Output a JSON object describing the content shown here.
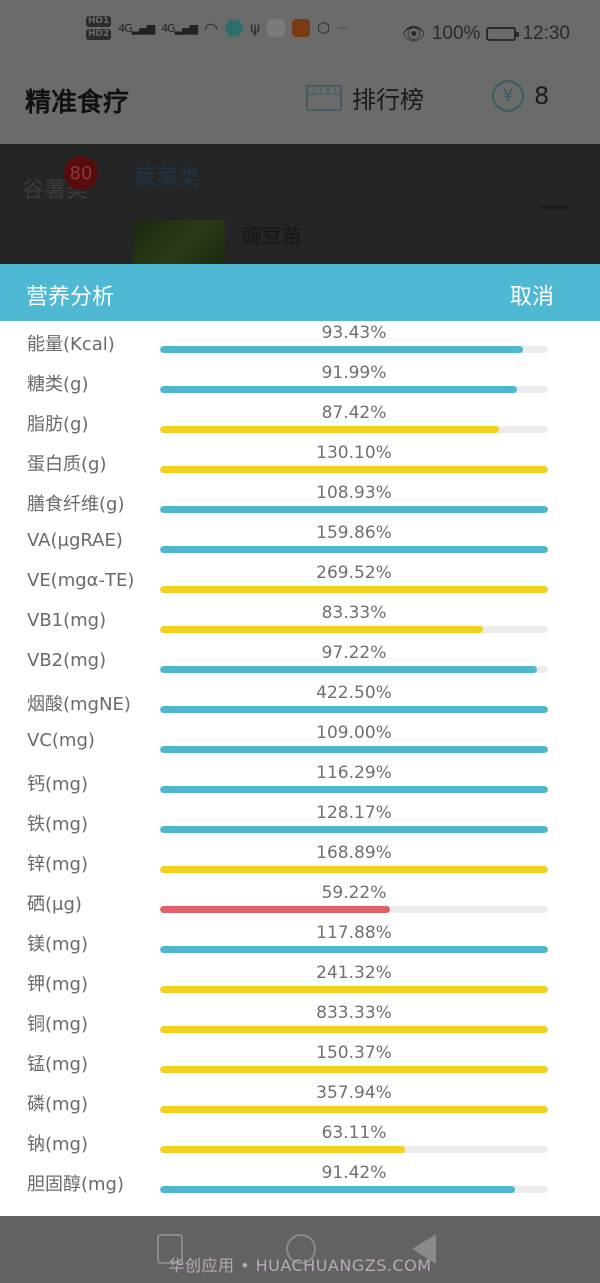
{
  "status_bar": {
    "hd1": "HD1",
    "hd2": "HD2",
    "signal1": "4G",
    "signal2": "4G",
    "overflow": "···",
    "eye_icon": "eye-comfort-icon",
    "battery_pct": "100%",
    "time": "12:30"
  },
  "app_bar": {
    "title": "精准食疗",
    "ranking_label": "排行榜",
    "coin_symbol": "¥",
    "coin_count": "8"
  },
  "background": {
    "left_category": "谷薯类",
    "badge_count": "80",
    "right_category": "蔬菜类",
    "food_name": "豌豆苗"
  },
  "modal": {
    "title": "营养分析",
    "cancel_label": "取消",
    "colors": {
      "ok": "#4fb6cc",
      "over": "#f2d21e",
      "low": "#e0606a",
      "track": "#ececec",
      "header": "#4fb8d3"
    },
    "rows": [
      {
        "label": "能量(Kcal)",
        "percent": "93.43%",
        "fill": 93.43,
        "color": "#4fb6cc"
      },
      {
        "label": "糖类(g)",
        "percent": "91.99%",
        "fill": 91.99,
        "color": "#4fb6cc"
      },
      {
        "label": "脂肪(g)",
        "percent": "87.42%",
        "fill": 87.42,
        "color": "#f2d21e"
      },
      {
        "label": "蛋白质(g)",
        "percent": "130.10%",
        "fill": 100,
        "color": "#f2d21e"
      },
      {
        "label": "膳食纤维(g)",
        "percent": "108.93%",
        "fill": 100,
        "color": "#4fb6cc"
      },
      {
        "label": "VA(μgRAE)",
        "percent": "159.86%",
        "fill": 100,
        "color": "#4fb6cc"
      },
      {
        "label": "VE(mgα-TE)",
        "percent": "269.52%",
        "fill": 100,
        "color": "#f2d21e"
      },
      {
        "label": "VB1(mg)",
        "percent": "83.33%",
        "fill": 83.33,
        "color": "#f2d21e"
      },
      {
        "label": "VB2(mg)",
        "percent": "97.22%",
        "fill": 97.22,
        "color": "#4fb6cc"
      },
      {
        "label": "烟酸(mgNE)",
        "percent": "422.50%",
        "fill": 100,
        "color": "#4fb6cc"
      },
      {
        "label": "VC(mg)",
        "percent": "109.00%",
        "fill": 100,
        "color": "#4fb6cc"
      },
      {
        "label": "钙(mg)",
        "percent": "116.29%",
        "fill": 100,
        "color": "#4fb6cc"
      },
      {
        "label": "铁(mg)",
        "percent": "128.17%",
        "fill": 100,
        "color": "#4fb6cc"
      },
      {
        "label": "锌(mg)",
        "percent": "168.89%",
        "fill": 100,
        "color": "#f2d21e"
      },
      {
        "label": "硒(μg)",
        "percent": "59.22%",
        "fill": 59.22,
        "color": "#e0606a"
      },
      {
        "label": "镁(mg)",
        "percent": "117.88%",
        "fill": 100,
        "color": "#4fb6cc"
      },
      {
        "label": "钾(mg)",
        "percent": "241.32%",
        "fill": 100,
        "color": "#f2d21e"
      },
      {
        "label": "铜(mg)",
        "percent": "833.33%",
        "fill": 100,
        "color": "#f2d21e"
      },
      {
        "label": "锰(mg)",
        "percent": "150.37%",
        "fill": 100,
        "color": "#f2d21e"
      },
      {
        "label": "磷(mg)",
        "percent": "357.94%",
        "fill": 100,
        "color": "#f2d21e"
      },
      {
        "label": "钠(mg)",
        "percent": "63.11%",
        "fill": 63.11,
        "color": "#f2d21e"
      },
      {
        "label": "胆固醇(mg)",
        "percent": "91.42%",
        "fill": 91.42,
        "color": "#4fb6cc"
      }
    ]
  },
  "nav_bar": {
    "watermark": "华创应用 • HUACHUANGZS.COM"
  }
}
